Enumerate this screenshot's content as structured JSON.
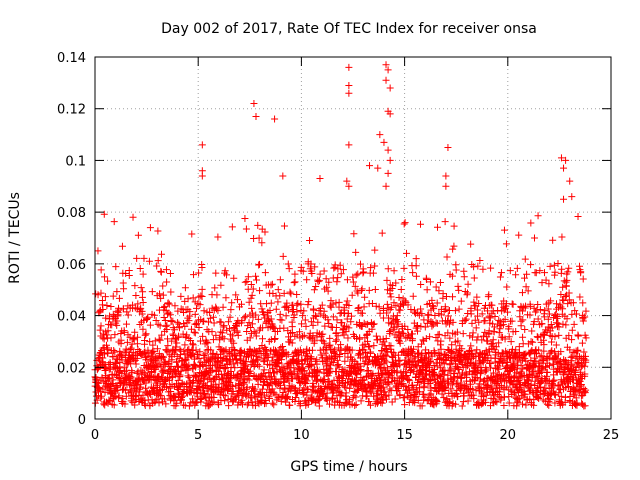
{
  "chart_data": {
    "type": "scatter",
    "title": "Day 002 of 2017, Rate Of TEC Index for receiver onsa",
    "xlabel": "GPS time / hours",
    "ylabel": "ROTI / TECUs",
    "xlim": [
      0,
      25
    ],
    "ylim": [
      0,
      0.14
    ],
    "xticks": [
      0,
      5,
      10,
      15,
      20,
      25
    ],
    "yticks": [
      0,
      0.02,
      0.04,
      0.06,
      0.08,
      0.1,
      0.12,
      0.14
    ],
    "grid": true,
    "marker": "+",
    "marker_color": "#ff0000",
    "data_range_x": [
      0,
      23.8
    ],
    "bulk_range_y": [
      0.005,
      0.06
    ],
    "outliers": [
      {
        "x": 7.7,
        "y": 0.122
      },
      {
        "x": 7.8,
        "y": 0.117
      },
      {
        "x": 8.7,
        "y": 0.116
      },
      {
        "x": 5.2,
        "y": 0.106
      },
      {
        "x": 5.2,
        "y": 0.096
      },
      {
        "x": 5.2,
        "y": 0.094
      },
      {
        "x": 9.1,
        "y": 0.094
      },
      {
        "x": 10.9,
        "y": 0.093
      },
      {
        "x": 12.3,
        "y": 0.136
      },
      {
        "x": 12.3,
        "y": 0.129
      },
      {
        "x": 12.3,
        "y": 0.126
      },
      {
        "x": 12.3,
        "y": 0.106
      },
      {
        "x": 12.2,
        "y": 0.092
      },
      {
        "x": 12.3,
        "y": 0.09
      },
      {
        "x": 13.3,
        "y": 0.098
      },
      {
        "x": 13.8,
        "y": 0.11
      },
      {
        "x": 13.7,
        "y": 0.097
      },
      {
        "x": 14.1,
        "y": 0.137
      },
      {
        "x": 14.2,
        "y": 0.135
      },
      {
        "x": 14.1,
        "y": 0.131
      },
      {
        "x": 14.3,
        "y": 0.128
      },
      {
        "x": 14.2,
        "y": 0.119
      },
      {
        "x": 14.3,
        "y": 0.118
      },
      {
        "x": 14.0,
        "y": 0.107
      },
      {
        "x": 14.2,
        "y": 0.104
      },
      {
        "x": 14.3,
        "y": 0.1
      },
      {
        "x": 14.2,
        "y": 0.095
      },
      {
        "x": 14.1,
        "y": 0.09
      },
      {
        "x": 17.1,
        "y": 0.105
      },
      {
        "x": 17.0,
        "y": 0.094
      },
      {
        "x": 17.0,
        "y": 0.09
      },
      {
        "x": 22.6,
        "y": 0.101
      },
      {
        "x": 22.8,
        "y": 0.1
      },
      {
        "x": 22.7,
        "y": 0.097
      },
      {
        "x": 23.0,
        "y": 0.092
      },
      {
        "x": 23.1,
        "y": 0.086
      },
      {
        "x": 22.7,
        "y": 0.085
      }
    ]
  }
}
